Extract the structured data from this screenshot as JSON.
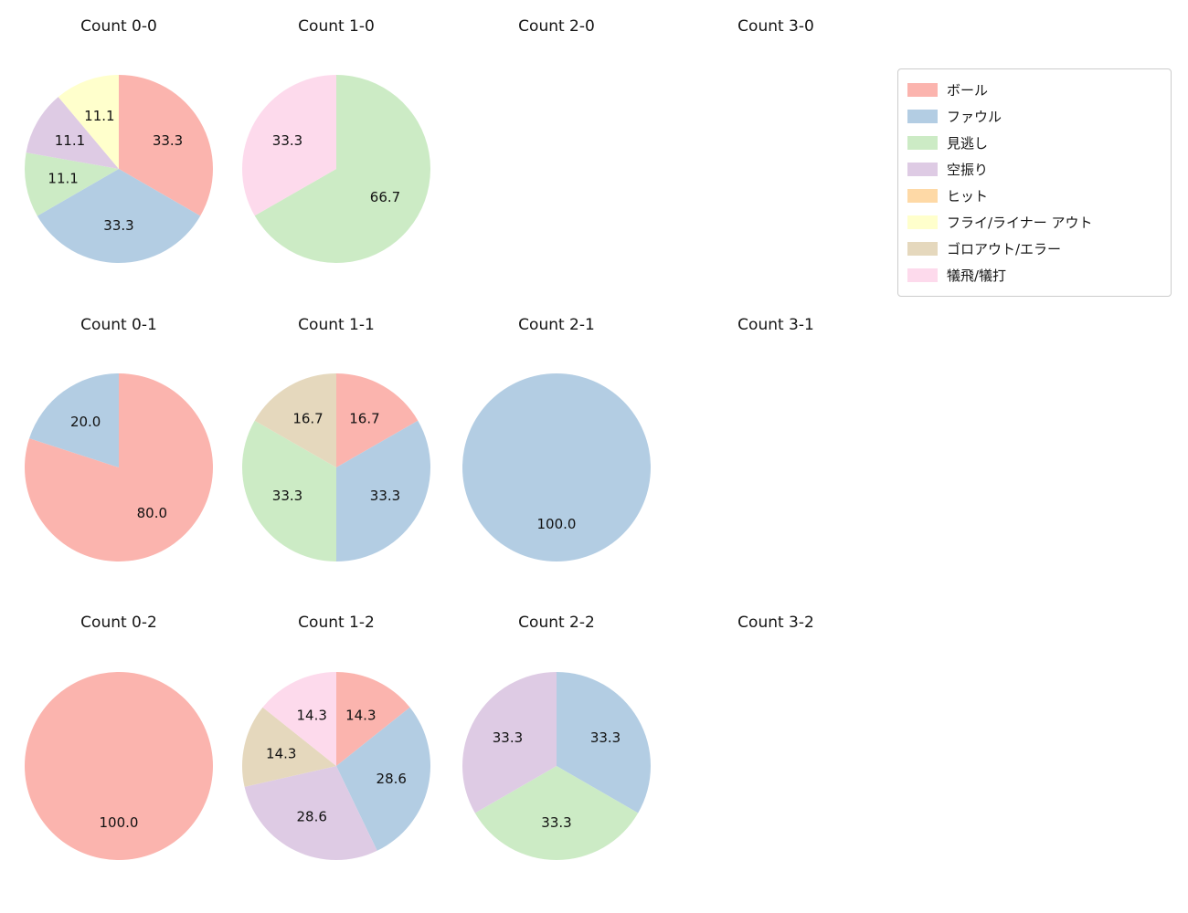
{
  "page": {
    "background": "#ffffff"
  },
  "chart_data": {
    "type": "pie",
    "layout": {
      "grid_rows": 3,
      "grid_cols": 4,
      "start_angle": "top",
      "direction": "clockwise",
      "pct_distance": 0.6,
      "legend_position": "top-right"
    },
    "legend": [
      {
        "label": "ボール",
        "color": "#fbb4ae"
      },
      {
        "label": "ファウル",
        "color": "#b3cde3"
      },
      {
        "label": "見逃し",
        "color": "#ccebc5"
      },
      {
        "label": "空振り",
        "color": "#decbe4"
      },
      {
        "label": "ヒット",
        "color": "#fed9a6"
      },
      {
        "label": "フライ/ライナー アウト",
        "color": "#ffffcc"
      },
      {
        "label": "ゴロアウト/エラー",
        "color": "#e5d8bd"
      },
      {
        "label": "犠飛/犠打",
        "color": "#fddaec"
      }
    ],
    "charts": [
      {
        "title": "Count 0-0",
        "slices": [
          {
            "label": "ボール",
            "value": 33.3
          },
          {
            "label": "ファウル",
            "value": 33.3
          },
          {
            "label": "見逃し",
            "value": 11.1
          },
          {
            "label": "空振り",
            "value": 11.1
          },
          {
            "label": "フライ/ライナー アウト",
            "value": 11.1
          }
        ]
      },
      {
        "title": "Count 1-0",
        "slices": [
          {
            "label": "見逃し",
            "value": 66.7
          },
          {
            "label": "犠飛/犠打",
            "value": 33.3
          }
        ]
      },
      {
        "title": "Count 2-0",
        "slices": []
      },
      {
        "title": "Count 3-0",
        "slices": []
      },
      {
        "title": "Count 0-1",
        "slices": [
          {
            "label": "ボール",
            "value": 80.0
          },
          {
            "label": "ファウル",
            "value": 20.0
          }
        ]
      },
      {
        "title": "Count 1-1",
        "slices": [
          {
            "label": "ボール",
            "value": 16.7
          },
          {
            "label": "ファウル",
            "value": 33.3
          },
          {
            "label": "見逃し",
            "value": 33.3
          },
          {
            "label": "ゴロアウト/エラー",
            "value": 16.7
          }
        ]
      },
      {
        "title": "Count 2-1",
        "slices": [
          {
            "label": "ファウル",
            "value": 100.0
          }
        ]
      },
      {
        "title": "Count 3-1",
        "slices": []
      },
      {
        "title": "Count 0-2",
        "slices": [
          {
            "label": "ボール",
            "value": 100.0
          }
        ]
      },
      {
        "title": "Count 1-2",
        "slices": [
          {
            "label": "ボール",
            "value": 14.3
          },
          {
            "label": "ファウル",
            "value": 28.6
          },
          {
            "label": "空振り",
            "value": 28.6
          },
          {
            "label": "ゴロアウト/エラー",
            "value": 14.3
          },
          {
            "label": "犠飛/犠打",
            "value": 14.3
          }
        ]
      },
      {
        "title": "Count 2-2",
        "slices": [
          {
            "label": "ファウル",
            "value": 33.3
          },
          {
            "label": "見逃し",
            "value": 33.3
          },
          {
            "label": "空振り",
            "value": 33.3
          }
        ]
      },
      {
        "title": "Count 3-2",
        "slices": []
      }
    ]
  }
}
